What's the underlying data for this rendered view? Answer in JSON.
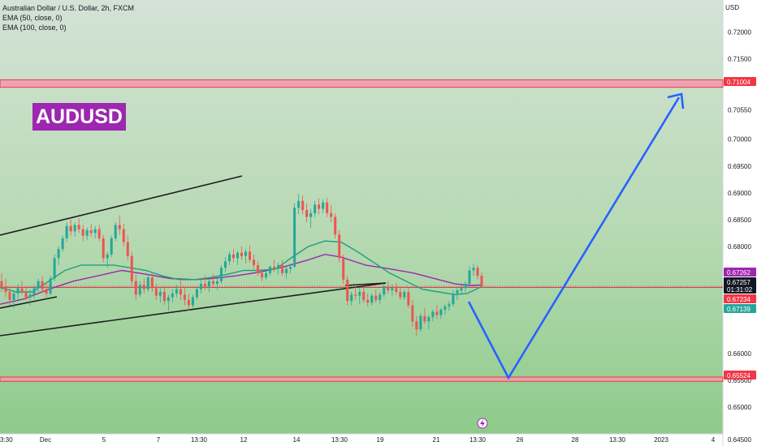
{
  "header": {
    "title": "Australian Dollar / U.S. Dollar, 2h, FXCM",
    "indicators": [
      "EMA (50, close, 0)",
      "EMA (100, close, 0)"
    ]
  },
  "symbol_badge": "AUDUSD",
  "currency": "USD",
  "colors": {
    "bg_top": "#cfe0d0",
    "bg_bottom": "#8ccb8a",
    "up_candle": "#26a69a",
    "down_candle": "#ef5350",
    "ema50": "#1f9f7f",
    "ema100": "#9c27b0",
    "zone": "#f29ab0",
    "red_line": "#f23645",
    "trendline": "#1e1e1e",
    "projection": "#2962ff",
    "badge": "#9c27b0"
  },
  "chart_data": {
    "type": "candlestick",
    "title": "Australian Dollar / U.S. Dollar, 2h, FXCM",
    "ylabel": "USD",
    "ylim": [
      0.645,
      0.726
    ],
    "y_ticks": [
      0.72,
      0.715,
      0.7055,
      0.7,
      0.695,
      0.69,
      0.685,
      0.68,
      0.66,
      0.655,
      0.65
    ],
    "y_tick_labels": [
      "0.72000",
      "0.71500",
      "0.70550",
      "0.70000",
      "0.69500",
      "0.69000",
      "0.68500",
      "0.68000",
      "0.66000",
      "0.65500",
      "0.65000"
    ],
    "x_tick_labels": [
      "3:30",
      "Dec",
      "5",
      "7",
      "13:30",
      "12",
      "14",
      "13:30",
      "19",
      "21",
      "13:30",
      "26",
      "28",
      "13:30",
      "2023",
      "4"
    ],
    "x_tick_order": [
      0,
      56,
      128,
      195,
      245,
      300,
      365,
      418,
      468,
      537,
      588,
      640,
      708,
      760,
      814,
      878
    ],
    "price_labels": [
      {
        "label": "0.71004",
        "value": 0.71004,
        "style": "red"
      },
      {
        "label": "0.67262",
        "value": 0.67262,
        "style": "purple"
      },
      {
        "label": "0.67257",
        "value": 0.67257,
        "style": "dark"
      },
      {
        "label": "01:31:02",
        "value": 0.6717,
        "style": "dark"
      },
      {
        "label": "0.67234",
        "value": 0.67234,
        "style": "red"
      },
      {
        "label": "0.67139",
        "value": 0.67139,
        "style": "teal"
      },
      {
        "label": "0.65524",
        "value": 0.65524,
        "style": "red"
      }
    ],
    "resistance_zone": [
      0.7097,
      0.7111
    ],
    "support_zone": [
      0.6548,
      0.6556
    ],
    "current_price": 0.67234,
    "close_dotted": 0.67257,
    "ema50_points": [
      [
        0,
        0.6723
      ],
      [
        20,
        0.6715
      ],
      [
        40,
        0.6715
      ],
      [
        60,
        0.6735
      ],
      [
        80,
        0.6755
      ],
      [
        100,
        0.6765
      ],
      [
        120,
        0.6765
      ],
      [
        140,
        0.6765
      ],
      [
        160,
        0.676
      ],
      [
        180,
        0.6755
      ],
      [
        200,
        0.6745
      ],
      [
        220,
        0.6738
      ],
      [
        240,
        0.6738
      ],
      [
        260,
        0.6742
      ],
      [
        280,
        0.6748
      ],
      [
        300,
        0.6755
      ],
      [
        320,
        0.6755
      ],
      [
        340,
        0.6758
      ],
      [
        360,
        0.678
      ],
      [
        380,
        0.68
      ],
      [
        400,
        0.681
      ],
      [
        420,
        0.6808
      ],
      [
        440,
        0.679
      ],
      [
        460,
        0.677
      ],
      [
        480,
        0.675
      ],
      [
        500,
        0.6735
      ],
      [
        520,
        0.672
      ],
      [
        540,
        0.6715
      ],
      [
        560,
        0.671
      ],
      [
        575,
        0.6712
      ],
      [
        593,
        0.6725
      ]
    ],
    "ema100_points": [
      [
        0,
        0.6692
      ],
      [
        30,
        0.6702
      ],
      [
        60,
        0.672
      ],
      [
        90,
        0.6735
      ],
      [
        120,
        0.6745
      ],
      [
        150,
        0.6755
      ],
      [
        180,
        0.6748
      ],
      [
        210,
        0.674
      ],
      [
        240,
        0.6738
      ],
      [
        260,
        0.674
      ],
      [
        290,
        0.6745
      ],
      [
        320,
        0.6752
      ],
      [
        350,
        0.6762
      ],
      [
        380,
        0.6775
      ],
      [
        400,
        0.6785
      ],
      [
        420,
        0.678
      ],
      [
        450,
        0.6765
      ],
      [
        480,
        0.6758
      ],
      [
        510,
        0.675
      ],
      [
        540,
        0.6738
      ],
      [
        560,
        0.673
      ],
      [
        580,
        0.6727
      ],
      [
        593,
        0.6728
      ]
    ],
    "candles": [
      [
        0.6735,
        0.675,
        0.6715,
        0.6725
      ],
      [
        0.6725,
        0.674,
        0.6705,
        0.6715
      ],
      [
        0.6715,
        0.6725,
        0.669,
        0.67
      ],
      [
        0.67,
        0.6718,
        0.6685,
        0.6712
      ],
      [
        0.6712,
        0.673,
        0.67,
        0.6722
      ],
      [
        0.6722,
        0.6735,
        0.671,
        0.6715
      ],
      [
        0.6715,
        0.6725,
        0.67,
        0.6705
      ],
      [
        0.6705,
        0.672,
        0.669,
        0.671
      ],
      [
        0.671,
        0.6728,
        0.6702,
        0.6722
      ],
      [
        0.6722,
        0.674,
        0.6715,
        0.6735
      ],
      [
        0.6735,
        0.6745,
        0.6715,
        0.672
      ],
      [
        0.672,
        0.673,
        0.6705,
        0.6712
      ],
      [
        0.6712,
        0.6745,
        0.6708,
        0.674
      ],
      [
        0.674,
        0.6785,
        0.6735,
        0.6778
      ],
      [
        0.6778,
        0.68,
        0.6765,
        0.6795
      ],
      [
        0.6795,
        0.682,
        0.679,
        0.6815
      ],
      [
        0.6815,
        0.6845,
        0.6808,
        0.6838
      ],
      [
        0.6838,
        0.685,
        0.682,
        0.6828
      ],
      [
        0.6828,
        0.6845,
        0.6818,
        0.684
      ],
      [
        0.684,
        0.6852,
        0.6825,
        0.6832
      ],
      [
        0.6832,
        0.684,
        0.681,
        0.682
      ],
      [
        0.682,
        0.6835,
        0.6812,
        0.683
      ],
      [
        0.683,
        0.6842,
        0.6818,
        0.6825
      ],
      [
        0.6825,
        0.6838,
        0.6815,
        0.6832
      ],
      [
        0.6832,
        0.684,
        0.681,
        0.6815
      ],
      [
        0.6815,
        0.6822,
        0.677,
        0.6778
      ],
      [
        0.6778,
        0.679,
        0.676,
        0.6785
      ],
      [
        0.6785,
        0.682,
        0.678,
        0.6815
      ],
      [
        0.6815,
        0.6845,
        0.681,
        0.684
      ],
      [
        0.684,
        0.6858,
        0.6822,
        0.6832
      ],
      [
        0.6832,
        0.6842,
        0.68,
        0.6808
      ],
      [
        0.6808,
        0.682,
        0.6775,
        0.6782
      ],
      [
        0.6782,
        0.679,
        0.6725,
        0.6735
      ],
      [
        0.6735,
        0.6748,
        0.67,
        0.671
      ],
      [
        0.671,
        0.6735,
        0.6705,
        0.6728
      ],
      [
        0.6728,
        0.674,
        0.6712,
        0.672
      ],
      [
        0.672,
        0.6748,
        0.6715,
        0.6742
      ],
      [
        0.6742,
        0.675,
        0.6715,
        0.6722
      ],
      [
        0.6722,
        0.673,
        0.67,
        0.6708
      ],
      [
        0.6708,
        0.6722,
        0.6695,
        0.6715
      ],
      [
        0.6715,
        0.6725,
        0.669,
        0.6698
      ],
      [
        0.6698,
        0.671,
        0.668,
        0.6705
      ],
      [
        0.6705,
        0.672,
        0.6695,
        0.6712
      ],
      [
        0.6712,
        0.6728,
        0.6705,
        0.672
      ],
      [
        0.672,
        0.6735,
        0.67,
        0.671
      ],
      [
        0.671,
        0.6725,
        0.669,
        0.67
      ],
      [
        0.67,
        0.6712,
        0.668,
        0.669
      ],
      [
        0.669,
        0.671,
        0.6685,
        0.6705
      ],
      [
        0.6705,
        0.6725,
        0.67,
        0.672
      ],
      [
        0.672,
        0.6738,
        0.6712,
        0.673
      ],
      [
        0.673,
        0.6745,
        0.6718,
        0.6725
      ],
      [
        0.6725,
        0.674,
        0.6715,
        0.6735
      ],
      [
        0.6735,
        0.6748,
        0.6725,
        0.673
      ],
      [
        0.673,
        0.674,
        0.6718,
        0.6735
      ],
      [
        0.6735,
        0.6765,
        0.673,
        0.676
      ],
      [
        0.676,
        0.678,
        0.6752,
        0.6772
      ],
      [
        0.6772,
        0.679,
        0.6765,
        0.6785
      ],
      [
        0.6785,
        0.6795,
        0.677,
        0.6778
      ],
      [
        0.6778,
        0.6792,
        0.6765,
        0.6788
      ],
      [
        0.6788,
        0.68,
        0.6775,
        0.6782
      ],
      [
        0.6782,
        0.6795,
        0.6768,
        0.679
      ],
      [
        0.679,
        0.6802,
        0.677,
        0.6775
      ],
      [
        0.6775,
        0.6785,
        0.6758,
        0.6765
      ],
      [
        0.6765,
        0.6772,
        0.6745,
        0.675
      ],
      [
        0.675,
        0.6758,
        0.6735,
        0.6742
      ],
      [
        0.6742,
        0.6755,
        0.6738,
        0.675
      ],
      [
        0.675,
        0.6765,
        0.6745,
        0.6762
      ],
      [
        0.6762,
        0.6775,
        0.6752,
        0.6758
      ],
      [
        0.6758,
        0.677,
        0.6748,
        0.6765
      ],
      [
        0.6765,
        0.6775,
        0.6745,
        0.675
      ],
      [
        0.675,
        0.6762,
        0.674,
        0.6758
      ],
      [
        0.6758,
        0.6768,
        0.675,
        0.6762
      ],
      [
        0.6762,
        0.688,
        0.676,
        0.6872
      ],
      [
        0.6872,
        0.6898,
        0.686,
        0.6885
      ],
      [
        0.6885,
        0.6895,
        0.686,
        0.6868
      ],
      [
        0.6868,
        0.688,
        0.6845,
        0.6855
      ],
      [
        0.6855,
        0.687,
        0.6835,
        0.6862
      ],
      [
        0.6862,
        0.6885,
        0.6855,
        0.6878
      ],
      [
        0.6878,
        0.689,
        0.686,
        0.687
      ],
      [
        0.687,
        0.6888,
        0.6862,
        0.6882
      ],
      [
        0.6882,
        0.689,
        0.6855,
        0.6862
      ],
      [
        0.6862,
        0.6878,
        0.6845,
        0.6855
      ],
      [
        0.6855,
        0.6862,
        0.6815,
        0.6822
      ],
      [
        0.6822,
        0.683,
        0.677,
        0.6778
      ],
      [
        0.6778,
        0.6785,
        0.673,
        0.6738
      ],
      [
        0.6738,
        0.6745,
        0.669,
        0.6698
      ],
      [
        0.6698,
        0.6715,
        0.669,
        0.671
      ],
      [
        0.671,
        0.6725,
        0.67,
        0.6708
      ],
      [
        0.6708,
        0.6722,
        0.6692,
        0.6715
      ],
      [
        0.6715,
        0.6725,
        0.6695,
        0.67
      ],
      [
        0.67,
        0.6712,
        0.6688,
        0.6695
      ],
      [
        0.6695,
        0.6712,
        0.669,
        0.6708
      ],
      [
        0.6708,
        0.672,
        0.6695,
        0.67
      ],
      [
        0.67,
        0.6715,
        0.6692,
        0.671
      ],
      [
        0.671,
        0.673,
        0.6705,
        0.6725
      ],
      [
        0.6725,
        0.6735,
        0.6712,
        0.6718
      ],
      [
        0.6718,
        0.673,
        0.6708,
        0.6722
      ],
      [
        0.6722,
        0.6732,
        0.671,
        0.6715
      ],
      [
        0.6715,
        0.6725,
        0.67,
        0.6705
      ],
      [
        0.6705,
        0.672,
        0.67,
        0.6715
      ],
      [
        0.6715,
        0.6722,
        0.6685,
        0.669
      ],
      [
        0.669,
        0.67,
        0.665,
        0.666
      ],
      [
        0.666,
        0.667,
        0.6632,
        0.6645
      ],
      [
        0.6645,
        0.6675,
        0.664,
        0.667
      ],
      [
        0.667,
        0.6685,
        0.6655,
        0.666
      ],
      [
        0.666,
        0.6672,
        0.6645,
        0.6668
      ],
      [
        0.6668,
        0.6682,
        0.666,
        0.6678
      ],
      [
        0.6678,
        0.669,
        0.6665,
        0.6672
      ],
      [
        0.6672,
        0.6685,
        0.6665,
        0.6682
      ],
      [
        0.6682,
        0.6692,
        0.6672,
        0.6688
      ],
      [
        0.6688,
        0.6698,
        0.668,
        0.6692
      ],
      [
        0.6692,
        0.6718,
        0.6688,
        0.6712
      ],
      [
        0.6712,
        0.6722,
        0.67,
        0.6718
      ],
      [
        0.6718,
        0.6728,
        0.671,
        0.6722
      ],
      [
        0.6722,
        0.6735,
        0.6715,
        0.673
      ],
      [
        0.673,
        0.6762,
        0.6725,
        0.6755
      ],
      [
        0.6755,
        0.6768,
        0.6745,
        0.676
      ],
      [
        0.676,
        0.6765,
        0.6738,
        0.6745
      ],
      [
        0.6745,
        0.6752,
        0.6722,
        0.6726
      ]
    ]
  }
}
